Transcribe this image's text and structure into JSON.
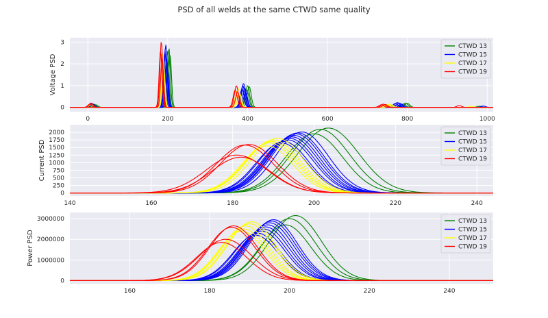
{
  "figure": {
    "title": "PSD of all welds at the same CTWD same quality"
  },
  "colors": {
    "CTWD 13": "#008000",
    "CTWD 15": "#0000ff",
    "CTWD 17": "#ffff00",
    "CTWD 19": "#ff0000"
  },
  "chart_data": [
    {
      "type": "line",
      "ylabel": "Voltage PSD",
      "xlabel": "",
      "xlim": [
        -45,
        1015
      ],
      "ylim": [
        -0.2,
        3.2
      ],
      "xticks": [
        0,
        200,
        400,
        600,
        800,
        1000
      ],
      "yticks": [
        0,
        1,
        2,
        3
      ],
      "grid": true,
      "legend_position": "upper right",
      "series": [
        {
          "name": "CTWD 13",
          "legend": true,
          "peaks": [
            [
              203,
              2.75,
              3.5
            ],
            [
              400,
              1.0,
              5
            ],
            [
              795,
              0.2,
              6
            ],
            [
              980,
              0.05,
              6
            ],
            [
              15,
              0.15,
              5
            ]
          ]
        },
        {
          "name": "CTWD 13",
          "legend": false,
          "peaks": [
            [
              200,
              2.6,
              3.5
            ],
            [
              404,
              0.95,
              5
            ],
            [
              800,
              0.18,
              6
            ],
            [
              20,
              0.12,
              5
            ]
          ]
        },
        {
          "name": "CTWD 13",
          "legend": false,
          "peaks": [
            [
              206,
              2.4,
              3.5
            ],
            [
              398,
              0.8,
              5
            ],
            [
              790,
              0.15,
              6
            ]
          ]
        },
        {
          "name": "CTWD 15",
          "legend": true,
          "peaks": [
            [
              195,
              2.9,
              3.5
            ],
            [
              390,
              1.1,
              5
            ],
            [
              775,
              0.22,
              6
            ],
            [
              990,
              0.06,
              6
            ],
            [
              10,
              0.18,
              5
            ]
          ]
        },
        {
          "name": "CTWD 15",
          "legend": false,
          "peaks": [
            [
              193,
              2.6,
              3.5
            ],
            [
              388,
              1.0,
              5
            ],
            [
              780,
              0.2,
              6
            ],
            [
              12,
              0.15,
              5
            ]
          ]
        },
        {
          "name": "CTWD 15",
          "legend": false,
          "peaks": [
            [
              197,
              2.3,
              3.5
            ],
            [
              393,
              0.9,
              5
            ],
            [
              770,
              0.18,
              6
            ]
          ]
        },
        {
          "name": "CTWD 15",
          "legend": false,
          "peaks": [
            [
              191,
              2.0,
              3.5
            ],
            [
              386,
              0.85,
              5
            ],
            [
              785,
              0.15,
              6
            ]
          ]
        },
        {
          "name": "CTWD 15",
          "legend": false,
          "peaks": [
            [
              199,
              1.8,
              3.5
            ],
            [
              395,
              0.7,
              5
            ],
            [
              775,
              0.12,
              6
            ]
          ]
        },
        {
          "name": "CTWD 17",
          "legend": true,
          "peaks": [
            [
              188,
              2.5,
              3.5
            ],
            [
              377,
              0.85,
              5
            ],
            [
              755,
              0.15,
              6
            ],
            [
              960,
              0.05,
              6
            ],
            [
              8,
              0.12,
              5
            ]
          ]
        },
        {
          "name": "CTWD 17",
          "legend": false,
          "peaks": [
            [
              186,
              2.2,
              3.5
            ],
            [
              374,
              0.75,
              5
            ],
            [
              750,
              0.13,
              6
            ]
          ]
        },
        {
          "name": "CTWD 17",
          "legend": false,
          "peaks": [
            [
              190,
              1.9,
              3.5
            ],
            [
              380,
              0.65,
              5
            ],
            [
              760,
              0.12,
              6
            ]
          ]
        },
        {
          "name": "CTWD 19",
          "legend": true,
          "peaks": [
            [
              184,
              3.05,
              3.5
            ],
            [
              372,
              1.0,
              5
            ],
            [
              740,
              0.15,
              6
            ],
            [
              930,
              0.08,
              6
            ],
            [
              8,
              0.2,
              5
            ]
          ]
        },
        {
          "name": "CTWD 19",
          "legend": false,
          "peaks": [
            [
              182,
              2.6,
              3.5
            ],
            [
              369,
              0.8,
              5
            ],
            [
              745,
              0.13,
              6
            ],
            [
              5,
              0.15,
              5
            ]
          ]
        },
        {
          "name": "CTWD 19",
          "legend": false,
          "peaks": [
            [
              186,
              2.3,
              3.5
            ],
            [
              375,
              0.7,
              5
            ],
            [
              735,
              0.12,
              6
            ]
          ]
        }
      ]
    },
    {
      "type": "line",
      "ylabel": "Current PSD",
      "xlabel": "",
      "xlim": [
        140,
        244
      ],
      "ylim": [
        -100,
        2250
      ],
      "xticks": [
        140,
        160,
        180,
        200,
        220,
        240
      ],
      "yticks": [
        0,
        250,
        500,
        750,
        1000,
        1250,
        1500,
        1750,
        2000
      ],
      "grid": true,
      "legend_position": "upper right",
      "series": [
        {
          "name": "CTWD 13",
          "legend": true,
          "peaks": [
            [
              203.5,
              2140,
              7.5
            ]
          ]
        },
        {
          "name": "CTWD 13",
          "legend": false,
          "peaks": [
            [
              201.5,
              2100,
              7.2
            ]
          ]
        },
        {
          "name": "CTWD 13",
          "legend": false,
          "peaks": [
            [
              200.0,
              1950,
              7.0
            ]
          ]
        },
        {
          "name": "CTWD 15",
          "legend": true,
          "peaks": [
            [
              197.0,
              2010,
              6.5
            ]
          ]
        },
        {
          "name": "CTWD 15",
          "legend": false,
          "peaks": [
            [
              196.0,
              1980,
              6.5
            ]
          ]
        },
        {
          "name": "CTWD 15",
          "legend": false,
          "peaks": [
            [
              195.5,
              1950,
              6.5
            ]
          ]
        },
        {
          "name": "CTWD 15",
          "legend": false,
          "peaks": [
            [
              195.0,
              1900,
              6.4
            ]
          ]
        },
        {
          "name": "CTWD 15",
          "legend": false,
          "peaks": [
            [
              194.5,
              1850,
              6.4
            ]
          ]
        },
        {
          "name": "CTWD 15",
          "legend": false,
          "peaks": [
            [
              194.0,
              1800,
              6.3
            ]
          ]
        },
        {
          "name": "CTWD 15",
          "legend": false,
          "peaks": [
            [
              193.5,
              1750,
              6.3
            ]
          ]
        },
        {
          "name": "CTWD 15",
          "legend": false,
          "peaks": [
            [
              192.5,
              1700,
              6.2
            ]
          ]
        },
        {
          "name": "CTWD 15",
          "legend": false,
          "peaks": [
            [
              192.0,
              1650,
              6.2
            ]
          ]
        },
        {
          "name": "CTWD 17",
          "legend": true,
          "peaks": [
            [
              191.0,
              1800,
              6.5
            ]
          ]
        },
        {
          "name": "CTWD 17",
          "legend": false,
          "peaks": [
            [
              190.0,
              1750,
              6.5
            ]
          ]
        },
        {
          "name": "CTWD 17",
          "legend": false,
          "peaks": [
            [
              189.5,
              1700,
              6.4
            ]
          ]
        },
        {
          "name": "CTWD 17",
          "legend": false,
          "peaks": [
            [
              189.0,
              1650,
              6.4
            ]
          ]
        },
        {
          "name": "CTWD 17",
          "legend": false,
          "peaks": [
            [
              188.5,
              1550,
              6.3
            ]
          ]
        },
        {
          "name": "CTWD 19",
          "legend": true,
          "peaks": [
            [
              184.0,
              1600,
              7.0
            ]
          ]
        },
        {
          "name": "CTWD 19",
          "legend": false,
          "peaks": [
            [
              183.0,
              1580,
              7.0
            ]
          ]
        },
        {
          "name": "CTWD 19",
          "legend": false,
          "peaks": [
            [
              181.0,
              1250,
              7.5
            ]
          ]
        },
        {
          "name": "CTWD 19",
          "legend": false,
          "peaks": [
            [
              182.0,
              1180,
              7.2
            ]
          ]
        }
      ]
    },
    {
      "type": "line",
      "ylabel": "Power PSD",
      "xlabel": "",
      "xlim": [
        145,
        251
      ],
      "ylim": [
        -150000,
        3300000
      ],
      "xticks": [
        160,
        180,
        200,
        220,
        240
      ],
      "yticks": [
        0,
        1000000,
        2000000,
        3000000
      ],
      "grid": true,
      "legend_position": "upper right",
      "series": [
        {
          "name": "CTWD 13",
          "legend": true,
          "peaks": [
            [
              201.5,
              3150000,
              6.5
            ]
          ]
        },
        {
          "name": "CTWD 13",
          "legend": false,
          "peaks": [
            [
              200.0,
              3000000,
              6.5
            ]
          ]
        },
        {
          "name": "CTWD 13",
          "legend": false,
          "peaks": [
            [
              199.0,
              2700000,
              6.3
            ]
          ]
        },
        {
          "name": "CTWD 15",
          "legend": true,
          "peaks": [
            [
              196.0,
              2950000,
              6.0
            ]
          ]
        },
        {
          "name": "CTWD 15",
          "legend": false,
          "peaks": [
            [
              195.5,
              2880000,
              6.0
            ]
          ]
        },
        {
          "name": "CTWD 15",
          "legend": false,
          "peaks": [
            [
              195.0,
              2800000,
              6.0
            ]
          ]
        },
        {
          "name": "CTWD 15",
          "legend": false,
          "peaks": [
            [
              194.5,
              2700000,
              5.9
            ]
          ]
        },
        {
          "name": "CTWD 15",
          "legend": false,
          "peaks": [
            [
              194.0,
              2600000,
              5.9
            ]
          ]
        },
        {
          "name": "CTWD 15",
          "legend": false,
          "peaks": [
            [
              193.5,
              2500000,
              5.8
            ]
          ]
        },
        {
          "name": "CTWD 15",
          "legend": false,
          "peaks": [
            [
              193.0,
              2400000,
              5.8
            ]
          ]
        },
        {
          "name": "CTWD 15",
          "legend": false,
          "peaks": [
            [
              192.0,
              2300000,
              5.7
            ]
          ]
        },
        {
          "name": "CTWD 15",
          "legend": false,
          "peaks": [
            [
              191.5,
              2200000,
              5.7
            ]
          ]
        },
        {
          "name": "CTWD 17",
          "legend": true,
          "peaks": [
            [
              190.5,
              2850000,
              6.0
            ]
          ]
        },
        {
          "name": "CTWD 17",
          "legend": false,
          "peaks": [
            [
              190.0,
              2750000,
              6.0
            ]
          ]
        },
        {
          "name": "CTWD 17",
          "legend": false,
          "peaks": [
            [
              189.0,
              2650000,
              5.9
            ]
          ]
        },
        {
          "name": "CTWD 17",
          "legend": false,
          "peaks": [
            [
              188.5,
              2500000,
              5.9
            ]
          ]
        },
        {
          "name": "CTWD 17",
          "legend": false,
          "peaks": [
            [
              188.0,
              2400000,
              5.8
            ]
          ]
        },
        {
          "name": "CTWD 19",
          "legend": true,
          "peaks": [
            [
              186.0,
              2650000,
              6.0
            ]
          ]
        },
        {
          "name": "CTWD 19",
          "legend": false,
          "peaks": [
            [
              185.5,
              2580000,
              6.0
            ]
          ]
        },
        {
          "name": "CTWD 19",
          "legend": false,
          "peaks": [
            [
              184.0,
              2000000,
              6.5
            ]
          ]
        },
        {
          "name": "CTWD 19",
          "legend": false,
          "peaks": [
            [
              183.0,
              1850000,
              6.3
            ]
          ]
        }
      ]
    }
  ]
}
